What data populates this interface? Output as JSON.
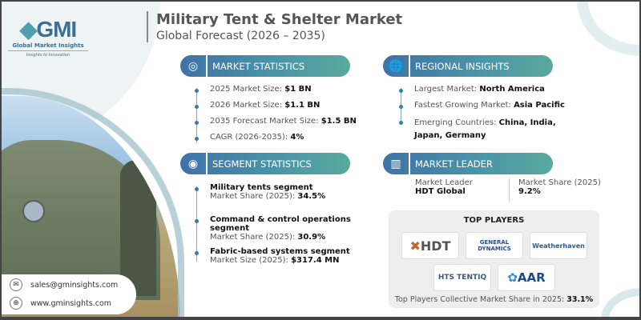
{
  "logo": {
    "brand": "GMI",
    "name": "Global Market Insights",
    "tagline": "Insights to Innovation"
  },
  "header": {
    "title": "Military Tent & Shelter Market",
    "subtitle": "Global Forecast (2026 – 2035)"
  },
  "market_statistics": {
    "title": "MARKET STATISTICS",
    "icon": "globe-chart-icon",
    "items": [
      {
        "label": "2025 Market Size: ",
        "value": "$1 BN"
      },
      {
        "label": "2026 Market Size: ",
        "value": "$1.1 BN"
      },
      {
        "label": "2035 Forecast Market Size: ",
        "value": "$1.5 BN"
      },
      {
        "label": "CAGR (2026-2035): ",
        "value": "4%"
      }
    ]
  },
  "segment_statistics": {
    "title": "SEGMENT STATISTICS",
    "icon": "target-chart-icon",
    "items": [
      {
        "name": "Military tents segment",
        "label": "Market Share (2025): ",
        "value": "34.5%"
      },
      {
        "name": "Command & control operations segment",
        "label": "Market Share (2025): ",
        "value": "30.9%"
      },
      {
        "name": "Fabric-based systems segment",
        "label": "Market Size (2025): ",
        "value": "$317.4 MN"
      }
    ]
  },
  "regional_insights": {
    "title": "REGIONAL INSIGHTS",
    "icon": "globe-icon",
    "items": [
      {
        "label": "Largest Market: ",
        "value": "North America"
      },
      {
        "label": "Fastest Growing Market: ",
        "value": "Asia Pacific"
      },
      {
        "label": "Emerging Countries: ",
        "value": "China, India, Japan, Germany"
      }
    ]
  },
  "market_leader": {
    "title": "MARKET LEADER",
    "icon": "bar-chart-icon",
    "leader_label": "Market Leader",
    "leader": "HDT Global",
    "share_label": "Market Share (2025)",
    "share": "9.2%"
  },
  "top_players": {
    "title": "TOP PLAYERS",
    "players": [
      "HDT",
      "GENERAL DYNAMICS",
      "Weatherhaven",
      "HTS TENTIQ",
      "AAR"
    ],
    "footer_label": "Top Players Collective Market Share in 2025: ",
    "footer_value": "33.1%"
  },
  "contact": {
    "email": "sales@gminsights.com",
    "website": "www.gminsights.com"
  },
  "colors": {
    "accent_blue": "#3e72a8",
    "accent_teal": "#5aa89e",
    "hdt_orange": "#c0672a"
  }
}
